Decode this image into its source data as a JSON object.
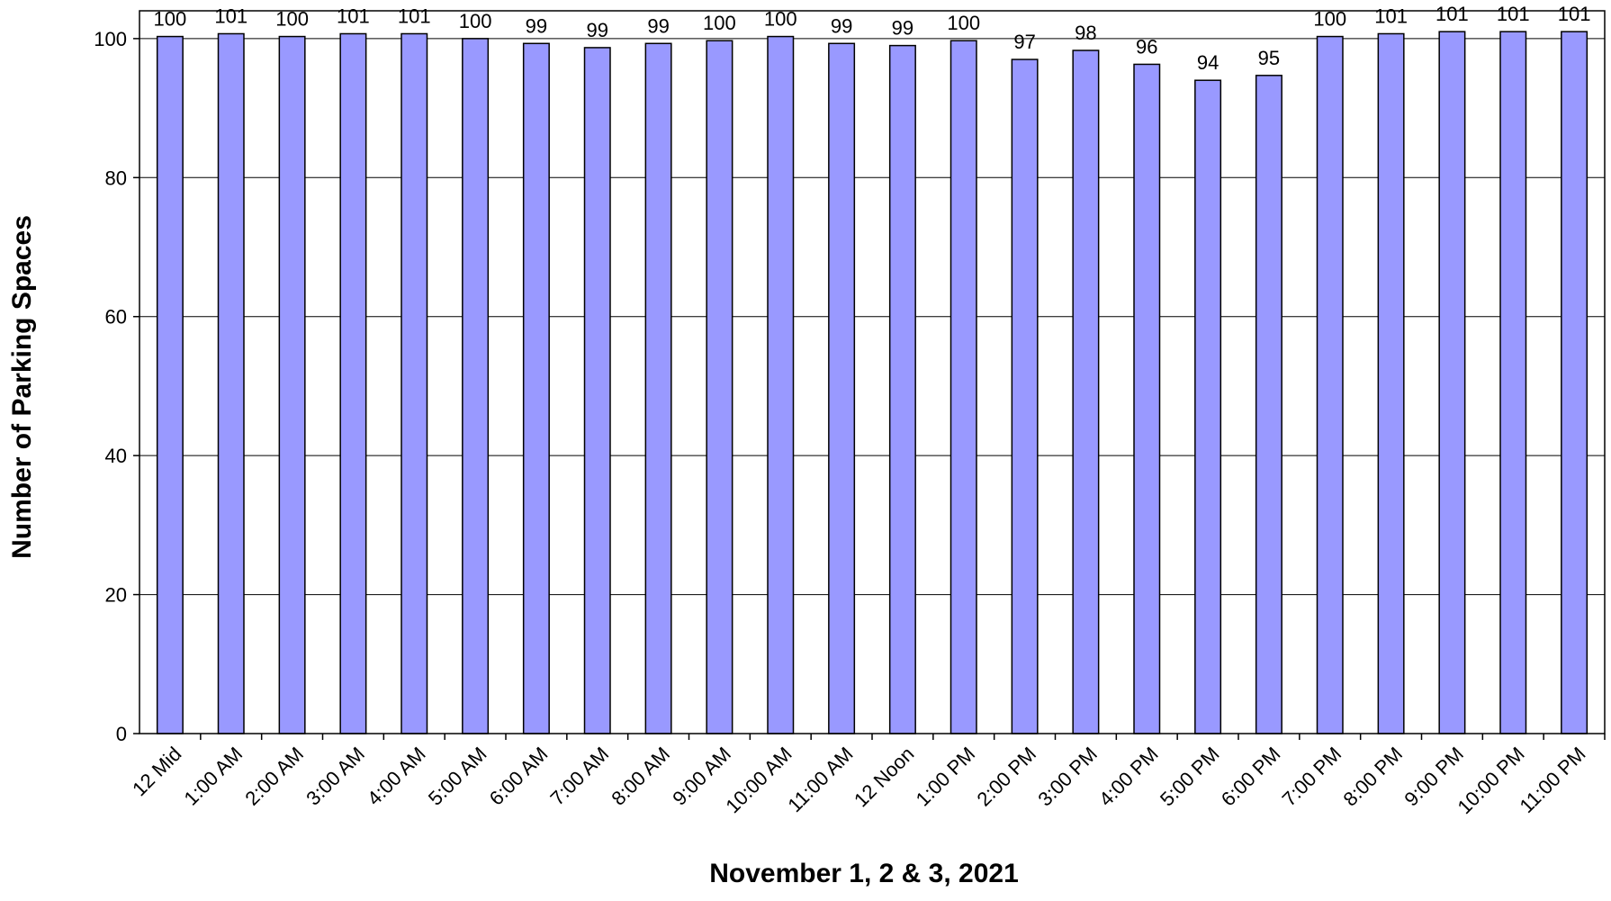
{
  "chart_data": {
    "type": "bar",
    "title": "",
    "xlabel": "November  1, 2 & 3, 2021",
    "ylabel": "Number of Parking Spaces",
    "categories": [
      "12 Mid",
      "1:00 AM",
      "2:00 AM",
      "3:00 AM",
      "4:00 AM",
      "5:00 AM",
      "6:00 AM",
      "7:00 AM",
      "8:00 AM",
      "9:00 AM",
      "10:00 AM",
      "11:00 AM",
      "12 Noon",
      "1:00 PM",
      "2:00 PM",
      "3:00 PM",
      "4:00 PM",
      "5:00 PM",
      "6:00 PM",
      "7:00 PM",
      "8:00 PM",
      "9:00 PM",
      "10:00 PM",
      "11:00 PM"
    ],
    "values": [
      100.3,
      100.7,
      100.3,
      100.7,
      100.7,
      100,
      99.3,
      98.7,
      99.3,
      99.7,
      100.3,
      99.3,
      99,
      99.7,
      97,
      98.3,
      96.3,
      94,
      94.7,
      100.3,
      100.7,
      101,
      101,
      101
    ],
    "data_labels": [
      "100",
      "101",
      "100",
      "101",
      "101",
      "100",
      "99",
      "99",
      "99",
      "100",
      "100",
      "99",
      "99",
      "100",
      "97",
      "98",
      "96",
      "94",
      "95",
      "100",
      "101",
      "101",
      "101",
      "101"
    ],
    "ylim": [
      0,
      104
    ],
    "yticks": [
      0,
      20,
      40,
      60,
      80,
      100
    ],
    "grid": "horizontal",
    "legend": "none",
    "bar_color": "#9999ff",
    "bar_edge_color": "#000000"
  }
}
